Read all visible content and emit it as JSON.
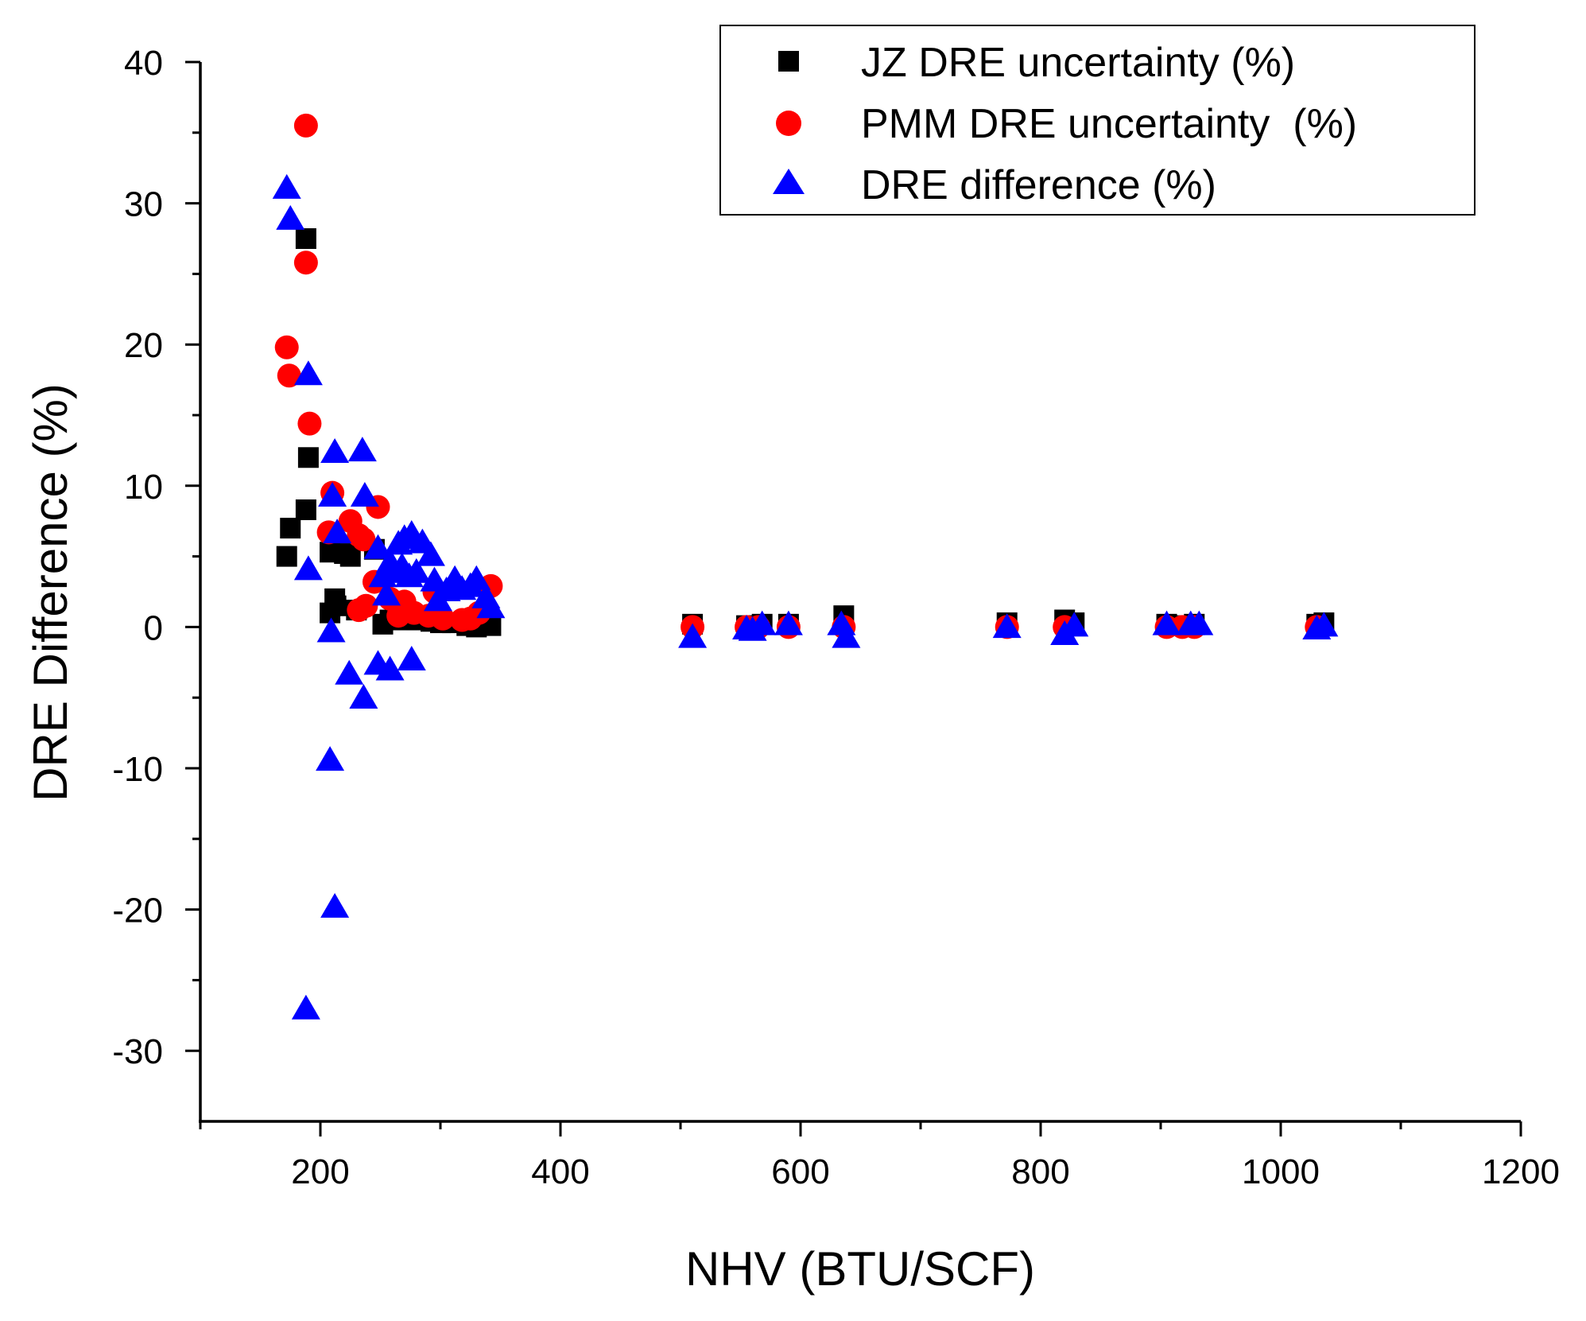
{
  "chart_data": {
    "type": "scatter",
    "title": "",
    "xlabel": "NHV (BTU/SCF)",
    "ylabel": "DRE Difference (%)",
    "xlim": [
      100,
      1200
    ],
    "ylim": [
      -35,
      40
    ],
    "xticks": [
      200,
      400,
      600,
      800,
      1000,
      1200
    ],
    "yticks": [
      -30,
      -20,
      -10,
      0,
      10,
      20,
      30,
      40
    ],
    "xtick_labels": [
      "200",
      "400",
      "600",
      "800",
      "1000",
      "1200"
    ],
    "ytick_labels": [
      "-30",
      "-20",
      "-10",
      "0",
      "10",
      "20",
      "30",
      "40"
    ],
    "grid": false,
    "legend_position": "top-right",
    "series": [
      {
        "name": "JZ DRE uncertainty (%)",
        "marker": "square",
        "color": "#000000",
        "points": [
          [
            172,
            5.0
          ],
          [
            175,
            7.0
          ],
          [
            188,
            27.5
          ],
          [
            188,
            8.3
          ],
          [
            190,
            12.0
          ],
          [
            208,
            1.0
          ],
          [
            208,
            5.3
          ],
          [
            212,
            2.0
          ],
          [
            213,
            1.5
          ],
          [
            220,
            5.2
          ],
          [
            225,
            5.0
          ],
          [
            230,
            1.2
          ],
          [
            245,
            5.5
          ],
          [
            252,
            0.2
          ],
          [
            258,
            0.5
          ],
          [
            265,
            0.8
          ],
          [
            272,
            0.5
          ],
          [
            280,
            0.5
          ],
          [
            292,
            0.4
          ],
          [
            300,
            0.3
          ],
          [
            310,
            0.3
          ],
          [
            322,
            0.1
          ],
          [
            330,
            0.0
          ],
          [
            342,
            0.1
          ],
          [
            510,
            0.2
          ],
          [
            555,
            0.1
          ],
          [
            562,
            0.1
          ],
          [
            568,
            0.2
          ],
          [
            590,
            0.2
          ],
          [
            636,
            0.8
          ],
          [
            772,
            0.3
          ],
          [
            820,
            0.5
          ],
          [
            828,
            0.3
          ],
          [
            905,
            0.2
          ],
          [
            918,
            0.1
          ],
          [
            928,
            0.2
          ],
          [
            1030,
            0.2
          ],
          [
            1036,
            0.3
          ]
        ]
      },
      {
        "name": "PMM DRE uncertainty  (%)",
        "marker": "circle",
        "color": "#ff0000",
        "points": [
          [
            188,
            35.5
          ],
          [
            188,
            25.8
          ],
          [
            172,
            19.8
          ],
          [
            174,
            17.8
          ],
          [
            191,
            14.4
          ],
          [
            210,
            9.5
          ],
          [
            207,
            6.7
          ],
          [
            225,
            7.5
          ],
          [
            232,
            6.5
          ],
          [
            236,
            6.2
          ],
          [
            248,
            8.5
          ],
          [
            232,
            1.2
          ],
          [
            238,
            1.5
          ],
          [
            245,
            3.2
          ],
          [
            258,
            2.0
          ],
          [
            265,
            0.8
          ],
          [
            270,
            1.8
          ],
          [
            278,
            1.0
          ],
          [
            290,
            0.8
          ],
          [
            295,
            2.5
          ],
          [
            302,
            0.6
          ],
          [
            318,
            0.5
          ],
          [
            325,
            0.6
          ],
          [
            332,
            1.0
          ],
          [
            342,
            2.9
          ],
          [
            510,
            0.0
          ],
          [
            555,
            0.0
          ],
          [
            565,
            0.0
          ],
          [
            590,
            0.0
          ],
          [
            636,
            0.0
          ],
          [
            772,
            0.0
          ],
          [
            820,
            0.0
          ],
          [
            905,
            0.0
          ],
          [
            918,
            0.0
          ],
          [
            928,
            0.0
          ],
          [
            1030,
            0.0
          ]
        ]
      },
      {
        "name": "DRE difference (%)",
        "marker": "triangle",
        "color": "#0000ff",
        "points": [
          [
            172,
            31.0
          ],
          [
            175,
            28.8
          ],
          [
            190,
            17.8
          ],
          [
            190,
            4.0
          ],
          [
            210,
            9.2
          ],
          [
            212,
            12.3
          ],
          [
            214,
            6.6
          ],
          [
            209,
            -0.4
          ],
          [
            224,
            -3.4
          ],
          [
            236,
            -5.1
          ],
          [
            208,
            -9.5
          ],
          [
            212,
            -19.9
          ],
          [
            188,
            -27.1
          ],
          [
            235,
            12.4
          ],
          [
            237,
            9.2
          ],
          [
            248,
            -2.7
          ],
          [
            258,
            -3.1
          ],
          [
            276,
            -2.4
          ],
          [
            248,
            5.5
          ],
          [
            252,
            3.5
          ],
          [
            255,
            2.2
          ],
          [
            258,
            4.5
          ],
          [
            262,
            3.8
          ],
          [
            265,
            5.8
          ],
          [
            268,
            4.2
          ],
          [
            270,
            6.2
          ],
          [
            274,
            3.5
          ],
          [
            276,
            6.5
          ],
          [
            280,
            3.8
          ],
          [
            285,
            5.9
          ],
          [
            292,
            5.0
          ],
          [
            295,
            3.2
          ],
          [
            298,
            1.8
          ],
          [
            305,
            2.5
          ],
          [
            312,
            3.3
          ],
          [
            318,
            2.6
          ],
          [
            325,
            2.8
          ],
          [
            330,
            3.3
          ],
          [
            338,
            2.0
          ],
          [
            342,
            1.3
          ],
          [
            510,
            -0.8
          ],
          [
            555,
            -0.2
          ],
          [
            560,
            -0.3
          ],
          [
            568,
            0.1
          ],
          [
            590,
            0.1
          ],
          [
            634,
            0.1
          ],
          [
            638,
            -0.8
          ],
          [
            772,
            -0.1
          ],
          [
            820,
            -0.6
          ],
          [
            828,
            0.0
          ],
          [
            905,
            0.1
          ],
          [
            925,
            0.1
          ],
          [
            932,
            0.1
          ],
          [
            1030,
            -0.2
          ],
          [
            1036,
            0.0
          ]
        ]
      }
    ]
  }
}
